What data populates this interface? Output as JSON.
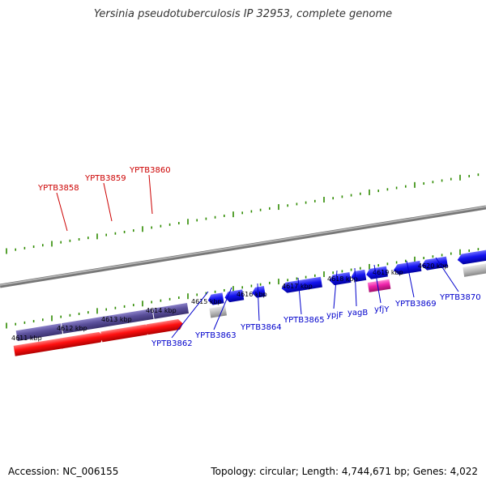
{
  "title": "Yersinia pseudotuberculosis IP 32953, complete genome",
  "footer": {
    "accession": "Accession: NC_006155",
    "summary": "Topology: circular; Length: 4,744,671 bp; Genes: 4,022"
  },
  "colors": {
    "backbone": "#888888",
    "tick": "#2e8b00",
    "forward_gene": "#5a4f9a",
    "forward_cds": "#ff1010",
    "reverse_gene": "#1010ee",
    "misc_gray": "#bbbbbb",
    "misc_pink": "#ee22aa",
    "label_red": "#cc0000",
    "label_blue": "#0000cc"
  },
  "kbp_labels": [
    "4611 kbp",
    "4612 kbp",
    "4613 kbp",
    "4614 kbp",
    "4615 kbp",
    "4616 kbp",
    "4617 kbp",
    "4618 kbp",
    "4619 kbp",
    "4620 kbp"
  ],
  "forward_labels": [
    "YPTB3858",
    "YPTB3859",
    "YPTB3860"
  ],
  "reverse_labels": [
    "YPTB3862",
    "YPTB3863",
    "YPTB3864",
    "YPTB3865",
    "ypjF",
    "yagB",
    "yfjY",
    "YPTB3869",
    "YPTB3870"
  ]
}
